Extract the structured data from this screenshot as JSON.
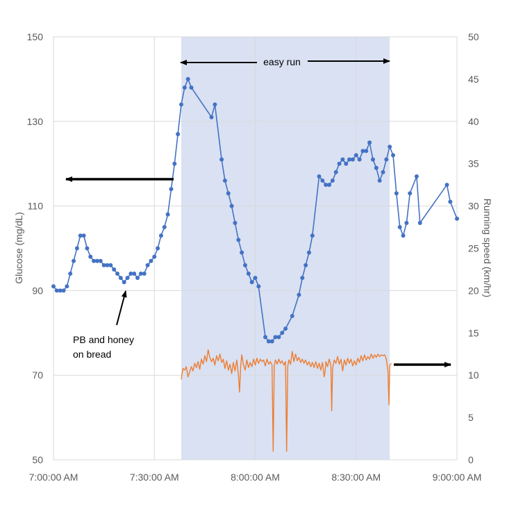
{
  "chart_data": {
    "type": "line",
    "title": "",
    "xlabel": "",
    "ylabel": "Glucose (mg/dL)",
    "ylabel_right": "Running speed (km/hr)",
    "x_unit": "time of day",
    "xlim": [
      "7:00:00 AM",
      "9:00:00 AM"
    ],
    "ylim": [
      50,
      150
    ],
    "ylim_right": [
      0,
      50
    ],
    "x_ticks": [
      "7:00:00 AM",
      "7:30:00 AM",
      "8:00:00 AM",
      "8:30:00 AM",
      "9:00:00 AM"
    ],
    "y_ticks_left": [
      "50",
      "70",
      "90",
      "110",
      "130",
      "150"
    ],
    "y_ticks_right": [
      "0",
      "5",
      "10",
      "15",
      "20",
      "25",
      "30",
      "35",
      "40",
      "45",
      "50"
    ],
    "grid": "vertical and horizontal gridlines",
    "legend": "none",
    "shaded_region": {
      "label": "easy run",
      "start": "7:38 AM",
      "end": "8:40 AM",
      "color": "#d9e1f2"
    },
    "annotations": [
      {
        "text_lines": [
          "PB and honey",
          "on bread"
        ]
      },
      {
        "text": "easy run"
      }
    ],
    "series": [
      {
        "axis": "left",
        "color": "#4472c4",
        "markers": true,
        "points": [
          [
            "7:00:00 AM",
            91
          ],
          [
            "7:01:00 AM",
            90
          ],
          [
            "7:02:00 AM",
            90
          ],
          [
            "7:03:00 AM",
            90
          ],
          [
            "7:04:00 AM",
            91
          ],
          [
            "7:05:00 AM",
            94
          ],
          [
            "7:06:00 AM",
            97
          ],
          [
            "7:07:00 AM",
            100
          ],
          [
            "7:08:00 AM",
            103
          ],
          [
            "7:09:00 AM",
            103
          ],
          [
            "7:10:00 AM",
            100
          ],
          [
            "7:11:00 AM",
            98
          ],
          [
            "7:12:00 AM",
            97
          ],
          [
            "7:13:00 AM",
            97
          ],
          [
            "7:14:00 AM",
            97
          ],
          [
            "7:15:00 AM",
            96
          ],
          [
            "7:16:00 AM",
            96
          ],
          [
            "7:17:00 AM",
            96
          ],
          [
            "7:18:00 AM",
            95
          ],
          [
            "7:19:00 AM",
            94
          ],
          [
            "7:20:00 AM",
            93
          ],
          [
            "7:21:00 AM",
            92
          ],
          [
            "7:22:00 AM",
            93
          ],
          [
            "7:23:00 AM",
            94
          ],
          [
            "7:24:00 AM",
            94
          ],
          [
            "7:25:00 AM",
            93
          ],
          [
            "7:26:00 AM",
            94
          ],
          [
            "7:27:00 AM",
            94
          ],
          [
            "7:28:00 AM",
            96
          ],
          [
            "7:29:00 AM",
            97
          ],
          [
            "7:30:00 AM",
            98
          ],
          [
            "7:31:00 AM",
            100
          ],
          [
            "7:32:00 AM",
            103
          ],
          [
            "7:33:00 AM",
            105
          ],
          [
            "7:34:00 AM",
            108
          ],
          [
            "7:35:00 AM",
            114
          ],
          [
            "7:36:00 AM",
            120
          ],
          [
            "7:37:00 AM",
            127
          ],
          [
            "7:38:00 AM",
            134
          ],
          [
            "7:39:00 AM",
            138
          ],
          [
            "7:40:00 AM",
            140
          ],
          [
            "7:41:00 AM",
            138
          ],
          [
            "7:47:00 AM",
            131
          ],
          [
            "7:48:00 AM",
            134
          ],
          [
            "7:50:00 AM",
            121
          ],
          [
            "7:51:00 AM",
            116
          ],
          [
            "7:52:00 AM",
            113
          ],
          [
            "7:53:00 AM",
            110
          ],
          [
            "7:54:00 AM",
            106
          ],
          [
            "7:55:00 AM",
            102
          ],
          [
            "7:56:00 AM",
            99
          ],
          [
            "7:57:00 AM",
            96
          ],
          [
            "7:58:00 AM",
            94
          ],
          [
            "7:59:00 AM",
            92
          ],
          [
            "8:00:00 AM",
            93
          ],
          [
            "8:01:00 AM",
            91
          ],
          [
            "8:03:00 AM",
            79
          ],
          [
            "8:04:00 AM",
            78
          ],
          [
            "8:05:00 AM",
            78
          ],
          [
            "8:06:00 AM",
            79
          ],
          [
            "8:07:00 AM",
            79
          ],
          [
            "8:08:00 AM",
            80
          ],
          [
            "8:09:00 AM",
            81
          ],
          [
            "8:11:00 AM",
            84
          ],
          [
            "8:13:00 AM",
            89
          ],
          [
            "8:14:00 AM",
            93
          ],
          [
            "8:15:00 AM",
            96
          ],
          [
            "8:16:00 AM",
            99
          ],
          [
            "8:17:00 AM",
            103
          ],
          [
            "8:19:00 AM",
            117
          ],
          [
            "8:20:00 AM",
            116
          ],
          [
            "8:21:00 AM",
            115
          ],
          [
            "8:22:00 AM",
            115
          ],
          [
            "8:23:00 AM",
            116
          ],
          [
            "8:24:00 AM",
            118
          ],
          [
            "8:25:00 AM",
            120
          ],
          [
            "8:26:00 AM",
            121
          ],
          [
            "8:27:00 AM",
            120
          ],
          [
            "8:28:00 AM",
            121
          ],
          [
            "8:29:00 AM",
            121
          ],
          [
            "8:30:00 AM",
            122
          ],
          [
            "8:31:00 AM",
            121
          ],
          [
            "8:32:00 AM",
            123
          ],
          [
            "8:33:00 AM",
            123
          ],
          [
            "8:34:00 AM",
            125
          ],
          [
            "8:35:00 AM",
            121
          ],
          [
            "8:36:00 AM",
            119
          ],
          [
            "8:37:00 AM",
            116
          ],
          [
            "8:38:00 AM",
            118
          ],
          [
            "8:39:00 AM",
            121
          ],
          [
            "8:40:00 AM",
            124
          ],
          [
            "8:41:00 AM",
            122
          ],
          [
            "8:42:00 AM",
            113
          ],
          [
            "8:43:00 AM",
            105
          ],
          [
            "8:44:00 AM",
            103
          ],
          [
            "8:45:00 AM",
            106
          ],
          [
            "8:46:00 AM",
            113
          ],
          [
            "8:48:00 AM",
            117
          ],
          [
            "8:49:00 AM",
            106
          ],
          [
            "8:57:00 AM",
            115
          ],
          [
            "8:58:00 AM",
            111
          ],
          [
            "9:00:00 AM",
            107
          ]
        ]
      },
      {
        "axis": "right",
        "color": "#ed7d31",
        "markers": false,
        "points": [
          [
            "7:38:00 AM",
            9.5
          ],
          [
            "7:38:30 AM",
            10.8
          ],
          [
            "7:39:00 AM",
            10.6
          ],
          [
            "7:39:30 AM",
            11.0
          ],
          [
            "7:40:00 AM",
            9.8
          ],
          [
            "7:40:30 AM",
            10.4
          ],
          [
            "7:41:00 AM",
            11.0
          ],
          [
            "7:41:30 AM",
            10.5
          ],
          [
            "7:42:00 AM",
            11.4
          ],
          [
            "7:42:30 AM",
            10.9
          ],
          [
            "7:43:00 AM",
            11.6
          ],
          [
            "7:43:30 AM",
            10.7
          ],
          [
            "7:44:00 AM",
            11.9
          ],
          [
            "7:44:30 AM",
            11.3
          ],
          [
            "7:45:00 AM",
            12.3
          ],
          [
            "7:45:30 AM",
            11.6
          ],
          [
            "7:46:00 AM",
            13.0
          ],
          [
            "7:46:30 AM",
            12.1
          ],
          [
            "7:47:00 AM",
            11.6
          ],
          [
            "7:47:30 AM",
            12.0
          ],
          [
            "7:48:00 AM",
            11.2
          ],
          [
            "7:48:30 AM",
            12.3
          ],
          [
            "7:49:00 AM",
            11.7
          ],
          [
            "7:49:30 AM",
            12.5
          ],
          [
            "7:50:00 AM",
            11.5
          ],
          [
            "7:50:30 AM",
            11.9
          ],
          [
            "7:51:00 AM",
            10.8
          ],
          [
            "7:51:30 AM",
            11.7
          ],
          [
            "7:52:00 AM",
            10.6
          ],
          [
            "7:52:30 AM",
            11.3
          ],
          [
            "7:53:00 AM",
            10.2
          ],
          [
            "7:53:30 AM",
            11.5
          ],
          [
            "7:54:00 AM",
            10.5
          ],
          [
            "7:54:30 AM",
            11.8
          ],
          [
            "7:55:00 AM",
            10.0
          ],
          [
            "7:55:20 AM",
            8.0
          ],
          [
            "7:55:40 AM",
            11.0
          ],
          [
            "7:56:00 AM",
            12.4
          ],
          [
            "7:56:30 AM",
            11.2
          ],
          [
            "7:57:00 AM",
            10.6
          ],
          [
            "7:57:30 AM",
            11.8
          ],
          [
            "7:58:00 AM",
            10.9
          ],
          [
            "7:58:30 AM",
            11.5
          ],
          [
            "7:59:00 AM",
            11.0
          ],
          [
            "7:59:30 AM",
            11.9
          ],
          [
            "8:00:00 AM",
            11.2
          ],
          [
            "8:00:30 AM",
            12.0
          ],
          [
            "8:01:00 AM",
            11.4
          ],
          [
            "8:01:30 AM",
            11.9
          ],
          [
            "8:02:00 AM",
            11.6
          ],
          [
            "8:02:30 AM",
            11.8
          ],
          [
            "8:03:00 AM",
            11.1
          ],
          [
            "8:03:30 AM",
            11.9
          ],
          [
            "8:04:00 AM",
            11.3
          ],
          [
            "8:04:30 AM",
            11.6
          ],
          [
            "8:05:00 AM",
            11.2
          ],
          [
            "8:05:20 AM",
            1.0
          ],
          [
            "8:05:40 AM",
            11.1
          ],
          [
            "8:06:00 AM",
            11.8
          ],
          [
            "8:06:30 AM",
            11.3
          ],
          [
            "8:07:00 AM",
            11.9
          ],
          [
            "8:07:30 AM",
            11.4
          ],
          [
            "8:08:00 AM",
            11.7
          ],
          [
            "8:08:30 AM",
            11.2
          ],
          [
            "8:09:00 AM",
            11.6
          ],
          [
            "8:09:20 AM",
            1.0
          ],
          [
            "8:09:40 AM",
            11.0
          ],
          [
            "8:10:00 AM",
            11.8
          ],
          [
            "8:10:30 AM",
            11.3
          ],
          [
            "8:11:00 AM",
            12.8
          ],
          [
            "8:11:30 AM",
            11.6
          ],
          [
            "8:12:00 AM",
            12.5
          ],
          [
            "8:12:30 AM",
            11.7
          ],
          [
            "8:13:00 AM",
            12.1
          ],
          [
            "8:13:30 AM",
            11.5
          ],
          [
            "8:14:00 AM",
            11.9
          ],
          [
            "8:14:30 AM",
            11.4
          ],
          [
            "8:15:00 AM",
            11.8
          ],
          [
            "8:15:30 AM",
            11.2
          ],
          [
            "8:16:00 AM",
            11.6
          ],
          [
            "8:16:30 AM",
            11.0
          ],
          [
            "8:17:00 AM",
            11.5
          ],
          [
            "8:17:30 AM",
            10.9
          ],
          [
            "8:18:00 AM",
            11.6
          ],
          [
            "8:18:30 AM",
            10.8
          ],
          [
            "8:19:00 AM",
            11.4
          ],
          [
            "8:19:30 AM",
            10.6
          ],
          [
            "8:20:00 AM",
            11.5
          ],
          [
            "8:20:30 AM",
            9.8
          ],
          [
            "8:20:45 AM",
            10.4
          ],
          [
            "8:21:00 AM",
            11.6
          ],
          [
            "8:21:30 AM",
            11.0
          ],
          [
            "8:22:00 AM",
            11.9
          ],
          [
            "8:22:30 AM",
            11.2
          ],
          [
            "8:22:45 AM",
            5.8
          ],
          [
            "8:23:00 AM",
            10.8
          ],
          [
            "8:23:30 AM",
            11.8
          ],
          [
            "8:24:00 AM",
            11.4
          ],
          [
            "8:24:30 AM",
            12.2
          ],
          [
            "8:25:00 AM",
            11.3
          ],
          [
            "8:25:30 AM",
            11.9
          ],
          [
            "8:26:00 AM",
            10.5
          ],
          [
            "8:26:30 AM",
            11.8
          ],
          [
            "8:27:00 AM",
            11.2
          ],
          [
            "8:27:30 AM",
            12.0
          ],
          [
            "8:28:00 AM",
            11.4
          ],
          [
            "8:28:30 AM",
            11.9
          ],
          [
            "8:29:00 AM",
            11.1
          ],
          [
            "8:29:30 AM",
            11.7
          ],
          [
            "8:30:00 AM",
            11.2
          ],
          [
            "8:30:30 AM",
            12.0
          ],
          [
            "8:31:00 AM",
            11.5
          ],
          [
            "8:31:30 AM",
            12.3
          ],
          [
            "8:32:00 AM",
            11.7
          ],
          [
            "8:32:30 AM",
            12.4
          ],
          [
            "8:33:00 AM",
            11.8
          ],
          [
            "8:33:30 AM",
            12.2
          ],
          [
            "8:34:00 AM",
            11.9
          ],
          [
            "8:34:30 AM",
            12.5
          ],
          [
            "8:35:00 AM",
            12.0
          ],
          [
            "8:35:30 AM",
            12.4
          ],
          [
            "8:36:00 AM",
            12.1
          ],
          [
            "8:36:30 AM",
            12.5
          ],
          [
            "8:37:00 AM",
            12.2
          ],
          [
            "8:37:30 AM",
            12.4
          ],
          [
            "8:38:00 AM",
            12.3
          ],
          [
            "8:38:30 AM",
            12.4
          ],
          [
            "8:39:00 AM",
            11.9
          ],
          [
            "8:39:30 AM",
            10.4
          ],
          [
            "8:39:45 AM",
            6.5
          ],
          [
            "8:40:00 AM",
            11.2
          ],
          [
            "8:40:30 AM",
            11.4
          ]
        ]
      }
    ]
  }
}
